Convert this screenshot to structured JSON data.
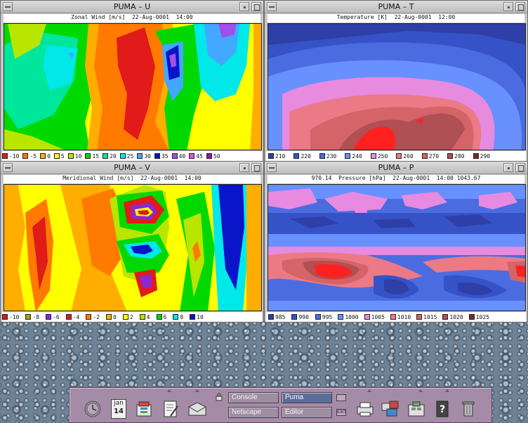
{
  "windows": {
    "u": {
      "title": "PUMA – U",
      "subtitle": "Zonal Wind [m/s]  22-Aug-0001  14:00",
      "legend": [
        {
          "label": "-10",
          "color": "#e11a1a"
        },
        {
          "label": "-5",
          "color": "#ff7a00"
        },
        {
          "label": "0",
          "color": "#ffae00"
        },
        {
          "label": "5",
          "color": "#ffff00"
        },
        {
          "label": "10",
          "color": "#b8e600"
        },
        {
          "label": "15",
          "color": "#00d800"
        },
        {
          "label": "20",
          "color": "#00e69a"
        },
        {
          "label": "25",
          "color": "#00e8e8"
        },
        {
          "label": "30",
          "color": "#42a8ff"
        },
        {
          "label": "35",
          "color": "#0a14c8"
        },
        {
          "label": "40",
          "color": "#a050e8"
        },
        {
          "label": "45",
          "color": "#e050e0"
        },
        {
          "label": "50",
          "color": "#8a1aa0"
        }
      ]
    },
    "t": {
      "title": "PUMA – T",
      "subtitle": "Temperature [K]  22-Aug-0001  12:00",
      "legend": [
        {
          "label": "210",
          "color": "#2f3fa8"
        },
        {
          "label": "220",
          "color": "#3553c6"
        },
        {
          "label": "230",
          "color": "#4b6ce0"
        },
        {
          "label": "240",
          "color": "#6890ff"
        },
        {
          "label": "250",
          "color": "#e68be0"
        },
        {
          "label": "260",
          "color": "#ec7a86"
        },
        {
          "label": "270",
          "color": "#d46468"
        },
        {
          "label": "280",
          "color": "#b04f54"
        },
        {
          "label": "290",
          "color": "#7a2a2e"
        }
      ]
    },
    "v": {
      "title": "PUMA – V",
      "subtitle": "Meridional Wind [m/s]  22-Aug-0001  14:00",
      "legend": [
        {
          "label": "-10",
          "color": "#d81a1a"
        },
        {
          "label": "-8",
          "color": "#a0a000"
        },
        {
          "label": "-6",
          "color": "#8a2ad0"
        },
        {
          "label": "-4",
          "color": "#e11a1a"
        },
        {
          "label": "-2",
          "color": "#ff7a00"
        },
        {
          "label": "0",
          "color": "#ffae00"
        },
        {
          "label": "2",
          "color": "#ffff00"
        },
        {
          "label": "4",
          "color": "#b8e600"
        },
        {
          "label": "6",
          "color": "#00d800"
        },
        {
          "label": "8",
          "color": "#00e8e8"
        },
        {
          "label": "10",
          "color": "#0a14c8"
        }
      ]
    },
    "p": {
      "title": "PUMA – P",
      "subtitle": "970.14  Pressure [hPa]  22-Aug-0001  14:00 1043.67",
      "legend": [
        {
          "label": "985",
          "color": "#2f3fa8"
        },
        {
          "label": "990",
          "color": "#3553c6"
        },
        {
          "label": "995",
          "color": "#4b6ce0"
        },
        {
          "label": "1000",
          "color": "#6890ff"
        },
        {
          "label": "1005",
          "color": "#e68be0"
        },
        {
          "label": "1010",
          "color": "#ec7a86"
        },
        {
          "label": "1015",
          "color": "#d46468"
        },
        {
          "label": "1020",
          "color": "#b04f54"
        },
        {
          "label": "1025",
          "color": "#7a2a2e"
        }
      ]
    }
  },
  "panel": {
    "calendar": {
      "month": "jan",
      "day": "14"
    },
    "workspaces": [
      "Console",
      "Puma",
      "Netscape",
      "Editor"
    ],
    "active_workspace": "Puma",
    "exit_label": "EXIT",
    "icons": [
      "clock-icon",
      "calendar-icon",
      "file-manager-icon",
      "text-editor-icon",
      "mailer-icon",
      "lock-icon",
      "printer-icon",
      "style-manager-icon",
      "application-manager-icon",
      "help-icon",
      "trash-icon"
    ]
  }
}
